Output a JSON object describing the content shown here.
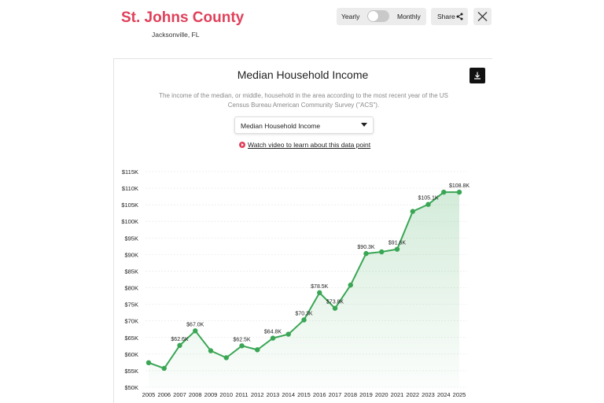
{
  "header": {
    "title": "St. Johns County",
    "subtitle": "Jacksonville, FL",
    "toggle": {
      "left_label": "Yearly",
      "right_label": "Monthly"
    },
    "share_label": "Share"
  },
  "colors": {
    "brand": "#e0405a",
    "line": "#3aa655"
  },
  "icons": {
    "share": "share-icon",
    "close": "close-icon",
    "download": "download-icon",
    "play": "play-icon"
  },
  "chart_panel": {
    "title": "Median Household Income",
    "description": "The income of the median, or middle, household in the area according to the most recent year of the US Census Bureau American Community Survey (\"ACS\").",
    "select_value": "Median Household Income",
    "video_link": "Watch video to learn about this data point"
  },
  "chart_data": {
    "type": "area",
    "title": "",
    "xlabel": "",
    "ylabel": "",
    "ylim": [
      50000,
      115000
    ],
    "yticks": [
      {
        "value": 115000,
        "label": "$115K"
      },
      {
        "value": 110000,
        "label": "$110K"
      },
      {
        "value": 105000,
        "label": "$105K"
      },
      {
        "value": 100000,
        "label": "$100K"
      },
      {
        "value": 95000,
        "label": "$95K"
      },
      {
        "value": 90000,
        "label": "$90K"
      },
      {
        "value": 85000,
        "label": "$85K"
      },
      {
        "value": 80000,
        "label": "$80K"
      },
      {
        "value": 75000,
        "label": "$75K"
      },
      {
        "value": 70000,
        "label": "$70K"
      },
      {
        "value": 65000,
        "label": "$65K"
      },
      {
        "value": 60000,
        "label": "$60K"
      },
      {
        "value": 55000,
        "label": "$55K"
      },
      {
        "value": 50000,
        "label": "$50K"
      }
    ],
    "categories": [
      "2005",
      "2006",
      "2007",
      "2008",
      "2009",
      "2010",
      "2011",
      "2012",
      "2013",
      "2014",
      "2015",
      "2016",
      "2017",
      "2018",
      "2019",
      "2020",
      "2021",
      "2022",
      "2023",
      "2024",
      "2025"
    ],
    "values": [
      57400,
      55700,
      62600,
      67000,
      61000,
      58900,
      62500,
      61300,
      64800,
      66000,
      70300,
      78500,
      73800,
      80800,
      90300,
      90800,
      91600,
      103000,
      105100,
      108800,
      108800
    ],
    "data_labels": [
      {
        "index": 2,
        "text": "$62.6K"
      },
      {
        "index": 3,
        "text": "$67.0K"
      },
      {
        "index": 6,
        "text": "$62.5K"
      },
      {
        "index": 8,
        "text": "$64.8K"
      },
      {
        "index": 10,
        "text": "$70.3K"
      },
      {
        "index": 11,
        "text": "$78.5K"
      },
      {
        "index": 12,
        "text": "$73.8K"
      },
      {
        "index": 14,
        "text": "$90.3K"
      },
      {
        "index": 16,
        "text": "$91.6K"
      },
      {
        "index": 18,
        "text": "$105.1K"
      },
      {
        "index": 20,
        "text": "$108.8K"
      }
    ],
    "grid": true
  }
}
